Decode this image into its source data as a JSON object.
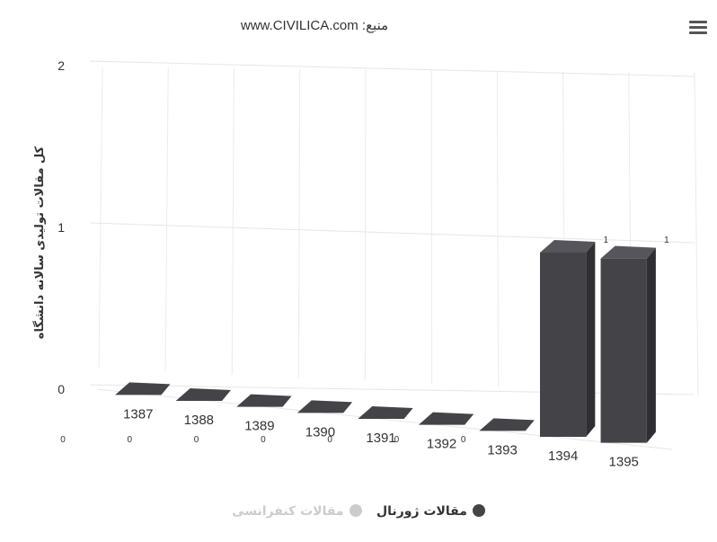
{
  "chart_data": {
    "type": "bar",
    "title": "منبع: www.CIVILICA.com",
    "ylabel": "کل مقالات تولیدی سالانه دانشگاه",
    "categories": [
      "1387",
      "1388",
      "1389",
      "1390",
      "1391",
      "1392",
      "1393",
      "1394",
      "1395"
    ],
    "y_ticks": [
      "0",
      "1",
      "2"
    ],
    "ylim": [
      0,
      2
    ],
    "series": [
      {
        "name": "مقالات ژورنال",
        "values": [
          0,
          0,
          0,
          0,
          0,
          0,
          0,
          1,
          1
        ],
        "color": "#434348",
        "visible": true
      },
      {
        "name": "مقالات کنفرانسی",
        "values": [
          0,
          0,
          0,
          0,
          0,
          0,
          0,
          0,
          0
        ],
        "color": "#cccccc",
        "visible": false
      }
    ],
    "data_labels": [
      "0",
      "0",
      "0",
      "0",
      "0",
      "0",
      "0",
      "1",
      "1"
    ],
    "grid": true,
    "legend": "bottom-center",
    "three_d": true
  },
  "icons": {
    "menu": "hamburger-menu-icon"
  }
}
